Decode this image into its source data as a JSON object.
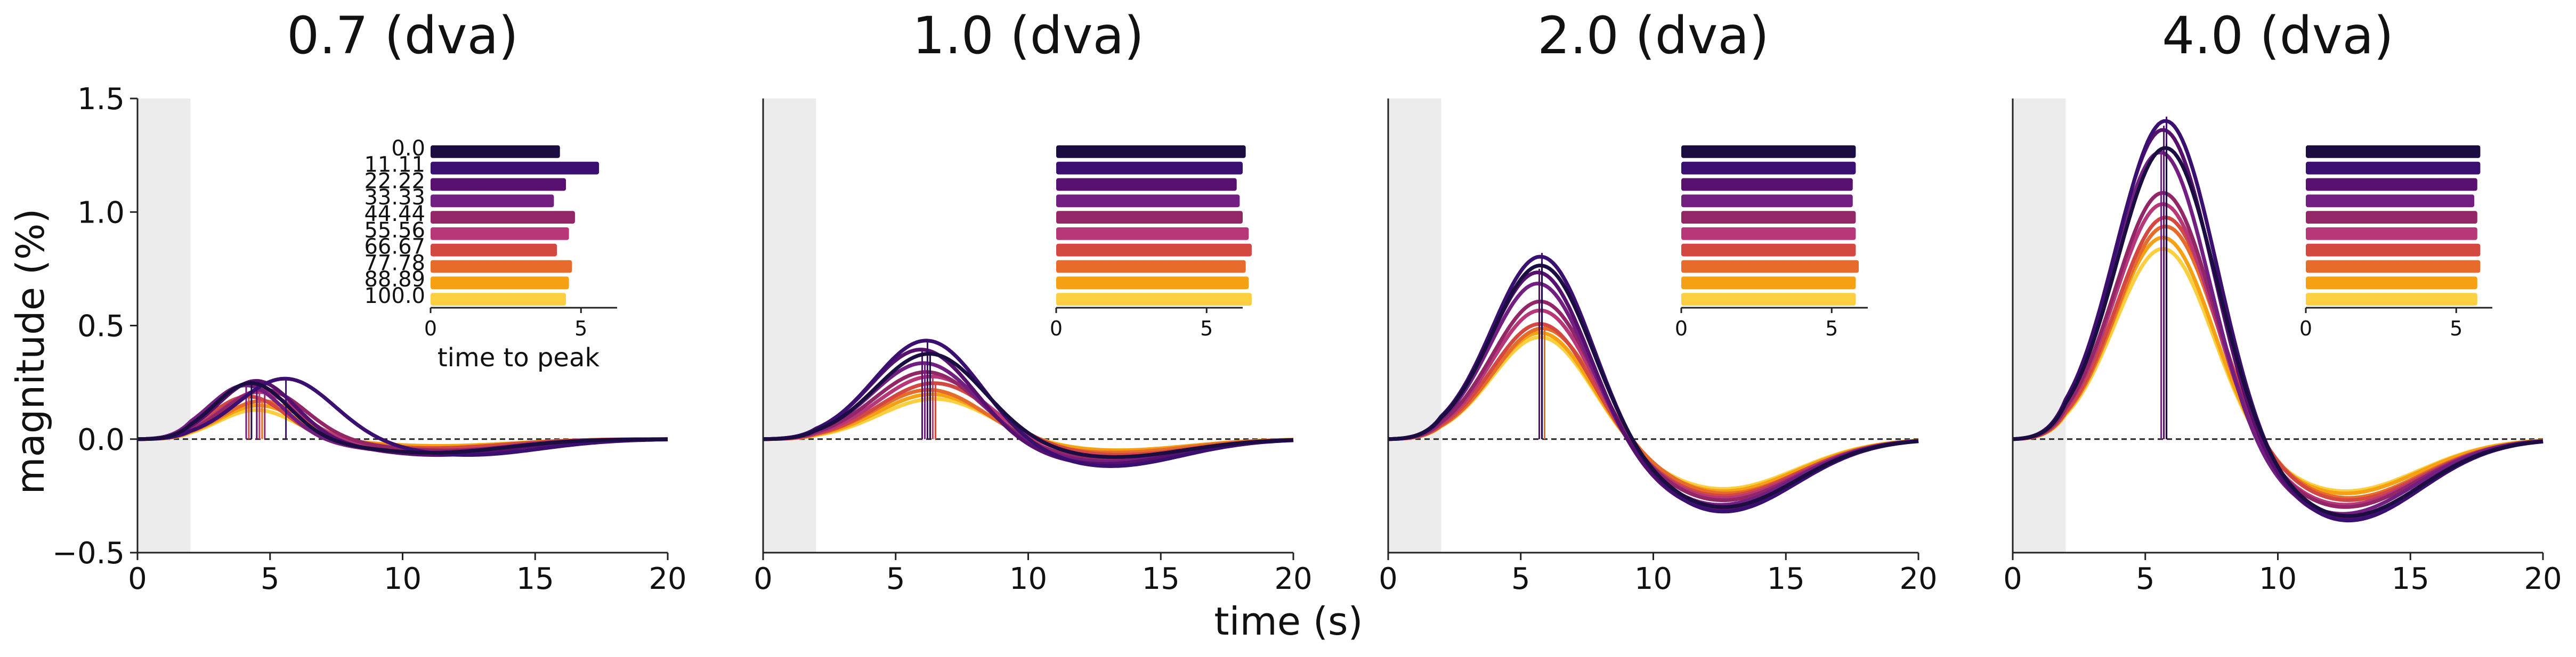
{
  "figure": {
    "xlabel": "time (s)",
    "ylabel": "magnitude (%)"
  },
  "chart_data": {
    "type": "line",
    "shared_axes": {
      "xlim": [
        0,
        20
      ],
      "ylim": [
        -0.5,
        1.5
      ],
      "xticks": [
        0,
        5,
        10,
        15,
        20
      ],
      "yticks": [
        -0.5,
        0.0,
        0.5,
        1.0,
        1.5
      ],
      "ytick_labels": [
        "−0.5",
        "0.0",
        "0.5",
        "1.0",
        "1.5"
      ],
      "shaded_interval": [
        0,
        2
      ],
      "zero_line": "dashed"
    },
    "series_labels": [
      "0.0",
      "11.11",
      "22.22",
      "33.33",
      "44.44",
      "55.56",
      "66.67",
      "77.78",
      "88.89",
      "100.0"
    ],
    "series_colors": [
      "#1b0c41",
      "#3b0f70",
      "#57106e",
      "#721f81",
      "#932667",
      "#b73779",
      "#d44842",
      "#e66c2c",
      "#f5a113",
      "#fbcf3f"
    ],
    "inset": {
      "xlabel": "time to peak",
      "xticks": [
        0,
        5
      ],
      "xlim": [
        0,
        6.2
      ]
    },
    "panels": [
      {
        "title": "0.7 (dva)",
        "peaks": [
          0.25,
          0.27,
          0.26,
          0.24,
          0.22,
          0.21,
          0.19,
          0.17,
          0.15,
          0.13
        ],
        "time_to_peak": [
          4.3,
          5.6,
          4.5,
          4.1,
          4.8,
          4.6,
          4.2,
          4.7,
          4.6,
          4.5
        ],
        "undershoot": [
          0.06,
          0.07,
          0.07,
          0.06,
          0.05,
          0.05,
          0.04,
          0.04,
          0.03,
          0.03
        ]
      },
      {
        "title": "1.0 (dva)",
        "peaks": [
          0.38,
          0.44,
          0.4,
          0.34,
          0.3,
          0.28,
          0.25,
          0.22,
          0.2,
          0.18
        ],
        "time_to_peak": [
          6.3,
          6.2,
          6.0,
          6.1,
          6.2,
          6.4,
          6.5,
          6.3,
          6.4,
          6.5
        ],
        "undershoot": [
          0.08,
          0.12,
          0.11,
          0.1,
          0.09,
          0.08,
          0.07,
          0.06,
          0.05,
          0.05
        ]
      },
      {
        "title": "2.0 (dva)",
        "peaks": [
          0.78,
          0.82,
          0.75,
          0.7,
          0.62,
          0.58,
          0.52,
          0.5,
          0.48,
          0.46
        ],
        "time_to_peak": [
          5.8,
          5.8,
          5.7,
          5.7,
          5.8,
          5.8,
          5.8,
          5.9,
          5.8,
          5.8
        ],
        "undershoot": [
          0.3,
          0.32,
          0.31,
          0.29,
          0.27,
          0.26,
          0.25,
          0.24,
          0.23,
          0.22
        ]
      },
      {
        "title": "4.0 (dva)",
        "peaks": [
          1.3,
          1.42,
          1.38,
          1.28,
          1.1,
          1.05,
          0.99,
          0.95,
          0.9,
          0.85
        ],
        "time_to_peak": [
          5.8,
          5.8,
          5.7,
          5.6,
          5.7,
          5.7,
          5.8,
          5.8,
          5.7,
          5.7
        ],
        "undershoot": [
          0.34,
          0.36,
          0.35,
          0.33,
          0.3,
          0.29,
          0.27,
          0.26,
          0.24,
          0.23
        ]
      }
    ]
  }
}
